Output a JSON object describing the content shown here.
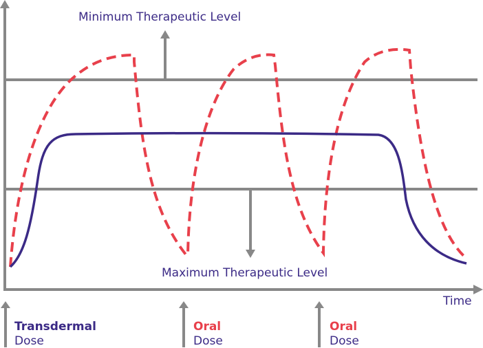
{
  "labels": {
    "min_level": "Minimum Therapeutic Level",
    "max_level": "Maximum Therapeutic Level",
    "time": "Time"
  },
  "doses": [
    {
      "kind": "Transdermal",
      "word": "Dose"
    },
    {
      "kind": "Oral",
      "word": "Dose"
    },
    {
      "kind": "Oral",
      "word": "Dose"
    }
  ],
  "series": [
    {
      "name": "Transdermal",
      "style": "solid",
      "color": "#3b2a86"
    },
    {
      "name": "Oral",
      "style": "dashed",
      "color": "#e8404b"
    }
  ],
  "colors": {
    "axis": "#888888",
    "text": "#3b2a86",
    "oral": "#e8404b",
    "transdermal": "#3b2a86"
  }
}
